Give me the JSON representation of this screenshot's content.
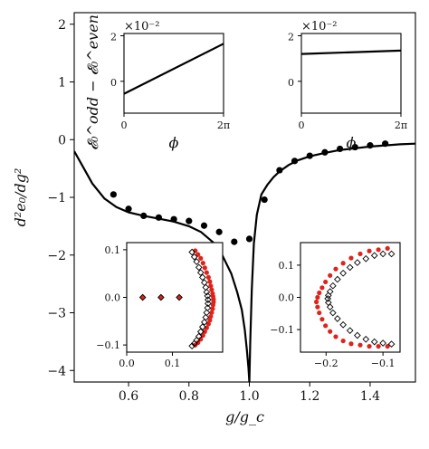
{
  "chart_data": {
    "main": {
      "type": "line",
      "xlabel": "g/g_c",
      "ylabel": "d²e₀/dg²",
      "xlim": [
        0.42,
        1.55
      ],
      "ylim": [
        -4.2,
        2.2
      ],
      "xticks": [
        0.6,
        0.8,
        1.0,
        1.2,
        1.4
      ],
      "xtick_labels": [
        "0.6",
        "0.8",
        "1.0",
        "1.2",
        "1.4"
      ],
      "yticks": [
        2,
        1,
        0,
        -1,
        -2,
        -3,
        -4
      ],
      "ytick_labels": [
        "2",
        "1",
        "0",
        "−1",
        "−2",
        "−3",
        "−4"
      ],
      "curve": {
        "x": [
          0.42,
          0.45,
          0.48,
          0.52,
          0.56,
          0.6,
          0.65,
          0.7,
          0.75,
          0.8,
          0.84,
          0.88,
          0.91,
          0.94,
          0.96,
          0.975,
          0.985,
          0.992,
          0.997,
          1.0,
          1.003,
          1.008,
          1.015,
          1.025,
          1.04,
          1.06,
          1.08,
          1.1,
          1.13,
          1.16,
          1.2,
          1.25,
          1.3,
          1.35,
          1.4,
          1.45,
          1.5,
          1.55
        ],
        "y": [
          -0.2,
          -0.48,
          -0.76,
          -1.02,
          -1.17,
          -1.26,
          -1.32,
          -1.37,
          -1.42,
          -1.5,
          -1.6,
          -1.78,
          -2.0,
          -2.32,
          -2.65,
          -2.95,
          -3.3,
          -3.65,
          -3.95,
          -4.2,
          -3.5,
          -2.6,
          -1.8,
          -1.3,
          -0.95,
          -0.78,
          -0.65,
          -0.55,
          -0.44,
          -0.36,
          -0.29,
          -0.23,
          -0.18,
          -0.15,
          -0.12,
          -0.1,
          -0.08,
          -0.07
        ]
      },
      "points": {
        "x": [
          0.55,
          0.6,
          0.65,
          0.7,
          0.75,
          0.8,
          0.85,
          0.9,
          0.95,
          1.0,
          1.05,
          1.1,
          1.15,
          1.2,
          1.25,
          1.3,
          1.35,
          1.4,
          1.45
        ],
        "y": [
          -0.95,
          -1.2,
          -1.32,
          -1.35,
          -1.38,
          -1.41,
          -1.49,
          -1.6,
          -1.77,
          -1.72,
          -1.04,
          -0.53,
          -0.37,
          -0.28,
          -0.22,
          -0.16,
          -0.13,
          -0.1,
          -0.07
        ]
      }
    },
    "inset_top_left": {
      "type": "line",
      "ylabel": "𝓔₀^odd − 𝓔₀^even",
      "xlabel": "ϕ",
      "offset_text": "×10⁻²",
      "xtick_labels": [
        "0",
        "2π"
      ],
      "ytick_labels": [
        "2",
        "0"
      ],
      "xlim": [
        0,
        6.283
      ],
      "ylim": [
        -1.4,
        2.1
      ],
      "x": [
        0,
        6.283
      ],
      "y": [
        -0.55,
        1.65
      ]
    },
    "inset_top_right": {
      "type": "line",
      "xlabel": "ϕ",
      "offset_text": "×10⁻²",
      "xtick_labels": [
        "0",
        "2π"
      ],
      "ytick_labels": [
        "2",
        "0"
      ],
      "xlim": [
        0,
        6.283
      ],
      "ylim": [
        -1.4,
        2.1
      ],
      "x": [
        0,
        6.283
      ],
      "y": [
        1.2,
        1.35
      ]
    },
    "inset_bottom_left": {
      "type": "scatter",
      "xlim": [
        0.0,
        0.21
      ],
      "ylim": [
        -0.115,
        0.115
      ],
      "xticks": [
        0.0,
        0.1
      ],
      "xtick_labels": [
        "0.0",
        "0.1"
      ],
      "yticks": [
        0.1,
        0.0,
        -0.1
      ],
      "ytick_labels": [
        "0.1",
        "0.0",
        "−0.1"
      ],
      "red_points": {
        "x": [
          0.035,
          0.075,
          0.115,
          0.15,
          0.156,
          0.162,
          0.167,
          0.171,
          0.175,
          0.179,
          0.182,
          0.184,
          0.186,
          0.188,
          0.189,
          0.19,
          0.19,
          0.189,
          0.188,
          0.186,
          0.184,
          0.182,
          0.179,
          0.175,
          0.171,
          0.167,
          0.162,
          0.156,
          0.15
        ],
        "y": [
          0.0,
          0.0,
          0.0,
          0.098,
          0.09,
          0.082,
          0.072,
          0.062,
          0.052,
          0.042,
          0.033,
          0.024,
          0.016,
          0.008,
          0.002,
          -0.004,
          -0.01,
          -0.016,
          -0.024,
          -0.032,
          -0.04,
          -0.048,
          -0.056,
          -0.064,
          -0.072,
          -0.08,
          -0.088,
          -0.095,
          -0.1
        ]
      },
      "open_diamonds": {
        "x": [
          0.035,
          0.075,
          0.115,
          0.143,
          0.148,
          0.153,
          0.158,
          0.162,
          0.166,
          0.17,
          0.173,
          0.175,
          0.177,
          0.178,
          0.178,
          0.177,
          0.175,
          0.173,
          0.17,
          0.166,
          0.162,
          0.158,
          0.153,
          0.148,
          0.143
        ],
        "y": [
          0.0,
          0.0,
          0.0,
          0.095,
          0.085,
          0.075,
          0.063,
          0.052,
          0.042,
          0.031,
          0.021,
          0.011,
          0.003,
          -0.005,
          -0.013,
          -0.022,
          -0.032,
          -0.042,
          -0.052,
          -0.062,
          -0.072,
          -0.082,
          -0.09,
          -0.097,
          -0.102
        ]
      }
    },
    "inset_bottom_right": {
      "type": "scatter",
      "xlim": [
        -0.245,
        -0.07
      ],
      "ylim": [
        -0.17,
        0.17
      ],
      "xticks": [
        -0.2,
        -0.1
      ],
      "xtick_labels": [
        "−0.2",
        "−0.1"
      ],
      "yticks": [
        0.1,
        0.0,
        -0.1
      ],
      "ytick_labels": [
        "0.1",
        "0.0",
        "−0.1"
      ],
      "red_points": {
        "x": [
          -0.092,
          -0.108,
          -0.124,
          -0.14,
          -0.156,
          -0.17,
          -0.183,
          -0.193,
          -0.201,
          -0.207,
          -0.212,
          -0.215,
          -0.217,
          -0.215,
          -0.212,
          -0.207,
          -0.201,
          -0.193,
          -0.183,
          -0.17,
          -0.156,
          -0.14,
          -0.124,
          -0.108,
          -0.092
        ],
        "y": [
          0.152,
          0.148,
          0.144,
          0.135,
          0.122,
          0.106,
          0.088,
          0.068,
          0.048,
          0.03,
          0.014,
          0.0,
          -0.014,
          -0.03,
          -0.048,
          -0.068,
          -0.088,
          -0.106,
          -0.122,
          -0.135,
          -0.144,
          -0.148,
          -0.152,
          -0.152,
          -0.152
        ]
      },
      "open_diamonds": {
        "x": [
          -0.085,
          -0.1,
          -0.115,
          -0.13,
          -0.145,
          -0.158,
          -0.17,
          -0.18,
          -0.188,
          -0.193,
          -0.196,
          -0.197,
          -0.196,
          -0.193,
          -0.188,
          -0.18,
          -0.17,
          -0.158,
          -0.145,
          -0.13,
          -0.115,
          -0.1,
          -0.085
        ],
        "y": [
          0.135,
          0.135,
          0.13,
          0.12,
          0.108,
          0.093,
          0.075,
          0.056,
          0.036,
          0.018,
          0.006,
          -0.004,
          -0.016,
          -0.03,
          -0.048,
          -0.066,
          -0.085,
          -0.103,
          -0.118,
          -0.13,
          -0.138,
          -0.142,
          -0.145
        ]
      }
    },
    "colors": {
      "line": "#000000",
      "dots": "#000000",
      "red": "#e0231a",
      "diamond_edge": "#000000"
    }
  }
}
